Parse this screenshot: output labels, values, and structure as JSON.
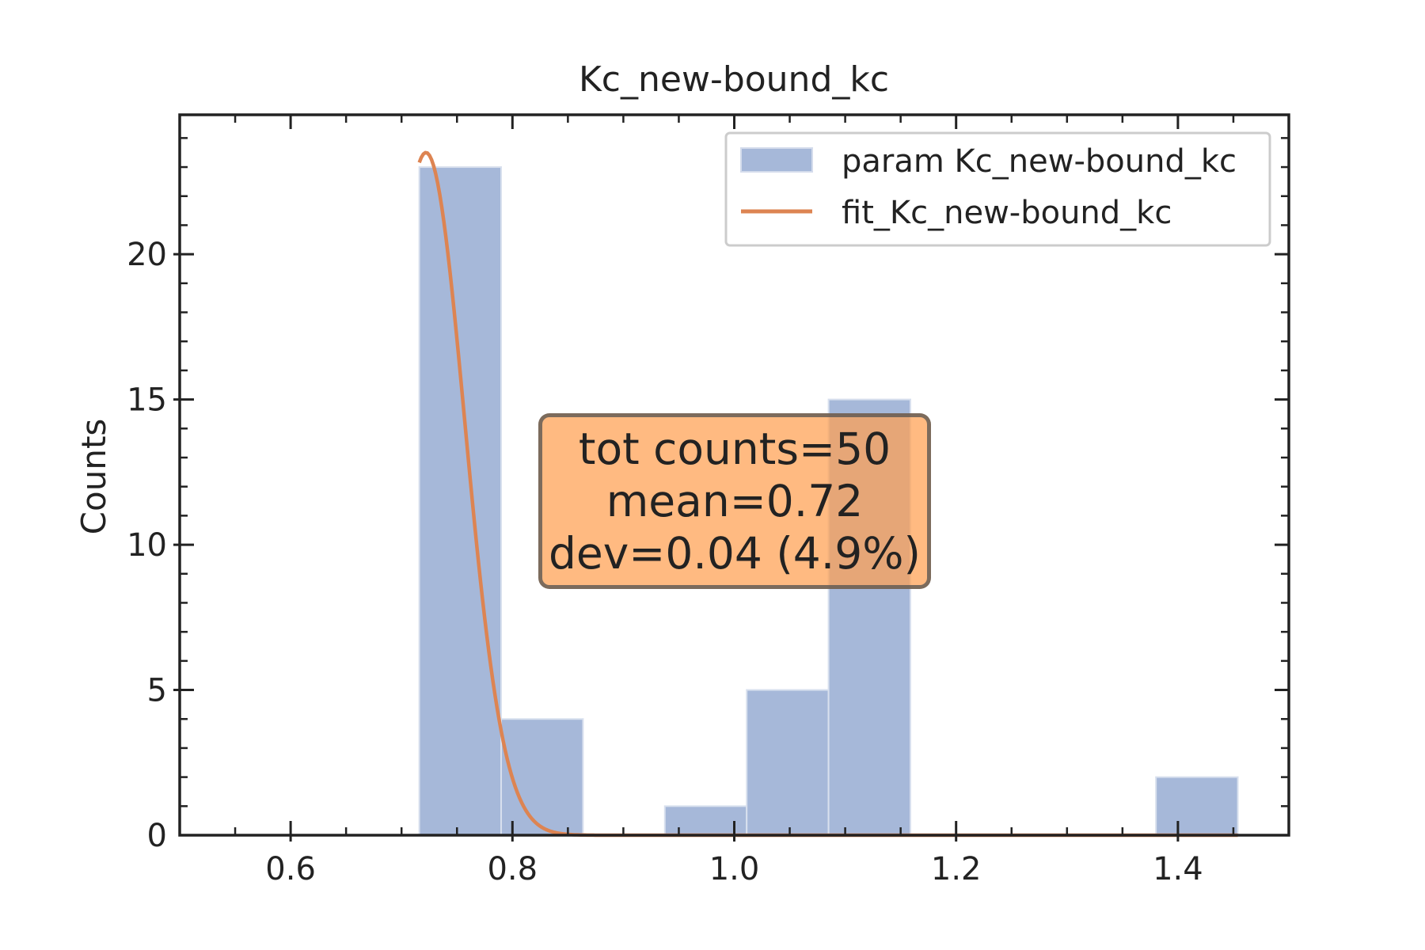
{
  "chart_data": {
    "type": "bar",
    "title": "Kc_new-bound_kc",
    "xlabel": "",
    "ylabel": "Counts",
    "xlim": [
      0.5,
      1.5
    ],
    "ylim": [
      0,
      24.8
    ],
    "grid": false,
    "legend_position": "top-right",
    "x_ticks": [
      0.6,
      0.8,
      1.0,
      1.2,
      1.4
    ],
    "x_tick_labels": [
      "0.6",
      "0.8",
      "1.0",
      "1.2",
      "1.4"
    ],
    "y_ticks": [
      0,
      5,
      10,
      15,
      20
    ],
    "y_tick_labels": [
      "0",
      "5",
      "10",
      "15",
      "20"
    ],
    "histogram": {
      "name": "param Kc_new-bound_kc",
      "color": "#a6b8d9",
      "bin_edges": [
        0.716,
        0.7898,
        0.8636,
        0.9374,
        1.0112,
        1.085,
        1.1588,
        1.2326,
        1.3064,
        1.3802,
        1.454
      ],
      "counts": [
        23,
        4,
        0,
        1,
        5,
        15,
        0,
        0,
        0,
        2
      ]
    },
    "fit": {
      "name": "fit_Kc_new-bound_kc",
      "color": "#dd8452",
      "amplitude": 23.5,
      "mean": 0.722,
      "sigma": 0.035,
      "x_start": 0.716,
      "x_end": 1.454
    },
    "stats_box": {
      "line1": "tot counts=50",
      "line2": "mean=0.72",
      "line3": "dev=0.04 (4.9%)",
      "color": "#ffa050"
    }
  }
}
